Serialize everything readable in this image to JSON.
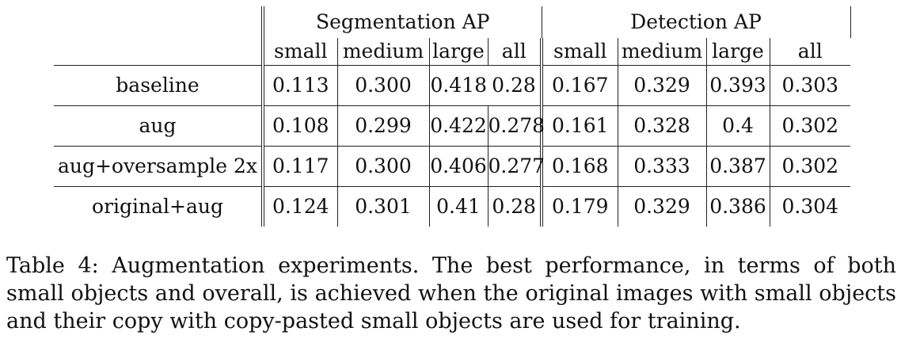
{
  "table": {
    "groups": [
      "Segmentation AP",
      "Detection AP"
    ],
    "subheaders": [
      "small",
      "medium",
      "large",
      "all",
      "small",
      "medium",
      "large",
      "all"
    ],
    "rows": [
      {
        "name": "baseline",
        "values": [
          "0.113",
          "0.300",
          "0.418",
          "0.28",
          "0.167",
          "0.329",
          "0.393",
          "0.303"
        ],
        "bold": [
          false,
          false,
          false,
          false,
          false,
          false,
          false,
          false
        ]
      },
      {
        "name": "aug",
        "values": [
          "0.108",
          "0.299",
          "0.422",
          "0.278",
          "0.161",
          "0.328",
          "0.4",
          "0.302"
        ],
        "bold": [
          false,
          false,
          false,
          false,
          false,
          false,
          false,
          false
        ]
      },
      {
        "name": "aug+oversample 2x",
        "values": [
          "0.117",
          "0.300",
          "0.406",
          "0.277",
          "0.168",
          "0.333",
          "0.387",
          "0.302"
        ],
        "bold": [
          false,
          false,
          false,
          false,
          false,
          false,
          false,
          false
        ]
      },
      {
        "name": "original+aug",
        "values": [
          "0.124",
          "0.301",
          "0.41",
          "0.28",
          "0.179",
          "0.329",
          "0.386",
          "0.304"
        ],
        "bold": [
          true,
          false,
          false,
          true,
          true,
          false,
          false,
          true
        ]
      }
    ]
  },
  "caption": "Table 4: Augmentation experiments. The best performance, in terms of both small objects and overall, is achieved when the original images with small objects and their copy with copy-pasted small objects are used for training."
}
